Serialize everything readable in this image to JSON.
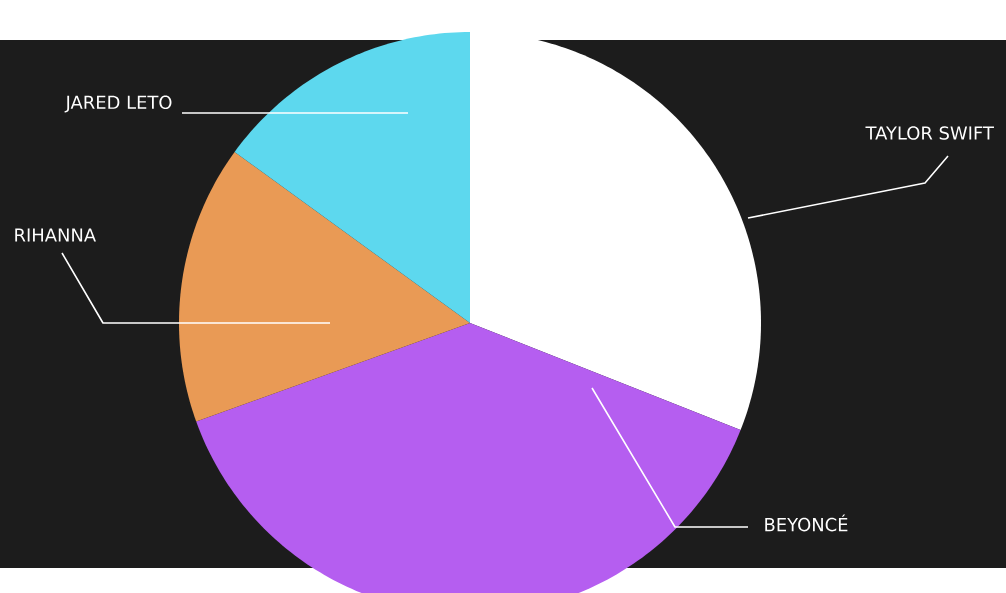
{
  "chart_data": {
    "type": "pie",
    "categories": [
      "TAYLOR SWIFT",
      "BEYONCÉ",
      "RIHANNA",
      "JARED LETO"
    ],
    "values": [
      31,
      38.5,
      15.5,
      15
    ],
    "colors": [
      "#ffffff",
      "#b55ef0",
      "#e99a55",
      "#5dd8ee"
    ]
  }
}
